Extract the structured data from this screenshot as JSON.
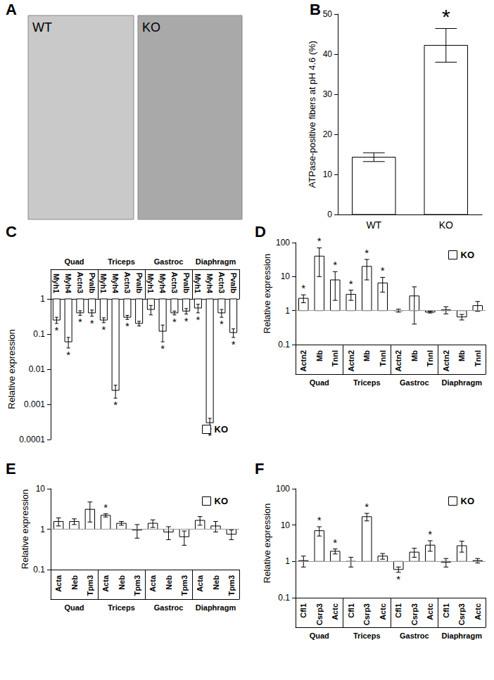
{
  "panel_a": {
    "letter": "A",
    "image_labels": [
      "WT",
      "KO"
    ]
  },
  "chart_data": [
    {
      "letter": "B",
      "type": "bar",
      "categories": [
        "WT",
        "KO"
      ],
      "values": [
        14.3,
        42.2
      ],
      "errors": [
        1.1,
        4.2
      ],
      "significant": [
        false,
        true
      ],
      "annotation": "*",
      "color": "#ffffff",
      "baseline": 0,
      "ylim": [
        0,
        50
      ],
      "yticks": [
        0,
        10,
        20,
        30,
        40,
        50
      ],
      "y_label": "ATPase-positive fibers at pH 4.6 (%)",
      "grid": false
    },
    {
      "letter": "C",
      "type": "bar",
      "categories": [
        "Myh1",
        "Myh4",
        "Actn3",
        "Pvalb",
        "Myh1",
        "Myh4",
        "Actn3",
        "Pvalb",
        "Myh1",
        "Myh4",
        "Actn3",
        "Pvalb",
        "Myh1",
        "Myh4",
        "Actn3",
        "Pvalb"
      ],
      "groups": [
        "Quad",
        "Triceps",
        "Gastroc",
        "Diaphragm"
      ],
      "series": [
        {
          "name": "KO",
          "color": "#ffffff",
          "values": [
            0.25,
            0.06,
            0.4,
            0.4,
            0.25,
            0.0025,
            0.3,
            0.2,
            0.5,
            0.12,
            0.4,
            0.45,
            0.55,
            0.0003,
            0.4,
            0.11
          ],
          "errors": [
            0.05,
            0.02,
            0.06,
            0.08,
            0.04,
            0.001,
            0.04,
            0.03,
            0.15,
            0.06,
            0.05,
            0.08,
            0.15,
            0.0001,
            0.1,
            0.03
          ],
          "significant": [
            true,
            true,
            true,
            true,
            true,
            true,
            true,
            false,
            false,
            true,
            true,
            true,
            true,
            true,
            true,
            true
          ]
        }
      ],
      "annotation": "*",
      "baseline": 1,
      "log": "y",
      "ylim": [
        0.0001,
        1
      ],
      "yticks": [
        1,
        0.1,
        0.01,
        0.001,
        0.0001
      ],
      "y_label": "Relative expression",
      "legend": "bottom-right",
      "grid": false
    },
    {
      "letter": "D",
      "type": "bar",
      "categories": [
        "Actn2",
        "Mb",
        "TnnI",
        "Actn2",
        "Mb",
        "TnnI",
        "Actn2",
        "Mb",
        "TnnI",
        "Actn2",
        "Mb",
        "TnnI"
      ],
      "groups": [
        "Quad",
        "Triceps",
        "Gastroc",
        "Diaphragm"
      ],
      "series": [
        {
          "name": "KO",
          "color": "#ffffff",
          "values": [
            2.3,
            40,
            8,
            3,
            20,
            6.5,
            1.0,
            2.7,
            0.9,
            1.05,
            0.65,
            1.4
          ],
          "errors": [
            0.6,
            30,
            6,
            1,
            12,
            3,
            0.1,
            2.3,
            0.05,
            0.25,
            0.12,
            0.45
          ],
          "significant": [
            true,
            true,
            true,
            true,
            true,
            true,
            false,
            false,
            false,
            false,
            false,
            false
          ]
        }
      ],
      "annotation": "*",
      "baseline": 1,
      "log": "y",
      "ylim": [
        0.1,
        100
      ],
      "yticks": [
        0.1,
        1,
        10,
        100
      ],
      "y_label": "Relative expression",
      "legend": "top-right",
      "grid": false
    },
    {
      "letter": "E",
      "type": "bar",
      "categories": [
        "Acta",
        "Neb",
        "Tpm3",
        "Acta",
        "Neb",
        "Tpm3",
        "Acta",
        "Neb",
        "Tpm3",
        "Acta",
        "Neb",
        "Tpm3"
      ],
      "groups": [
        "Quad",
        "Triceps",
        "Gastroc",
        "Diaphragm"
      ],
      "series": [
        {
          "name": "KO",
          "color": "#ffffff",
          "values": [
            1.55,
            1.55,
            3.1,
            2.2,
            1.4,
            0.95,
            1.4,
            0.85,
            0.65,
            1.65,
            1.2,
            0.75
          ],
          "errors": [
            0.35,
            0.25,
            1.6,
            0.2,
            0.15,
            0.35,
            0.3,
            0.3,
            0.25,
            0.4,
            0.35,
            0.2
          ],
          "significant": [
            false,
            false,
            false,
            true,
            false,
            false,
            false,
            false,
            false,
            false,
            false,
            false
          ]
        }
      ],
      "annotation": "*",
      "baseline": 1,
      "log": "y",
      "ylim": [
        0.1,
        10
      ],
      "yticks": [
        0.1,
        1,
        10
      ],
      "y_label": "Relative expression",
      "legend": "top-right",
      "grid": false
    },
    {
      "letter": "F",
      "type": "bar",
      "categories": [
        "Cfl1",
        "Csrp3",
        "Actc",
        "Cfl1",
        "Csrp3",
        "Actc",
        "Cfl1",
        "Csrp3",
        "Actc",
        "Cfl1",
        "Csrp3",
        "Actc"
      ],
      "groups": [
        "Quad",
        "Triceps",
        "Gastroc",
        "Diaphragm"
      ],
      "series": [
        {
          "name": "KO",
          "color": "#ffffff",
          "values": [
            1.05,
            7,
            1.9,
            1.0,
            17,
            1.4,
            0.6,
            1.8,
            2.8,
            0.95,
            2.7,
            1.05
          ],
          "errors": [
            0.35,
            2,
            0.3,
            0.3,
            4,
            0.25,
            0.1,
            0.5,
            0.9,
            0.25,
            0.9,
            0.15
          ],
          "significant": [
            false,
            true,
            true,
            false,
            true,
            false,
            true,
            false,
            true,
            false,
            false,
            false
          ]
        }
      ],
      "annotation": "*",
      "baseline": 1,
      "log": "y",
      "ylim": [
        0.1,
        100
      ],
      "yticks": [
        0.1,
        1,
        10,
        100
      ],
      "y_label": "Relative expression",
      "legend": "top-right",
      "grid": false
    }
  ]
}
